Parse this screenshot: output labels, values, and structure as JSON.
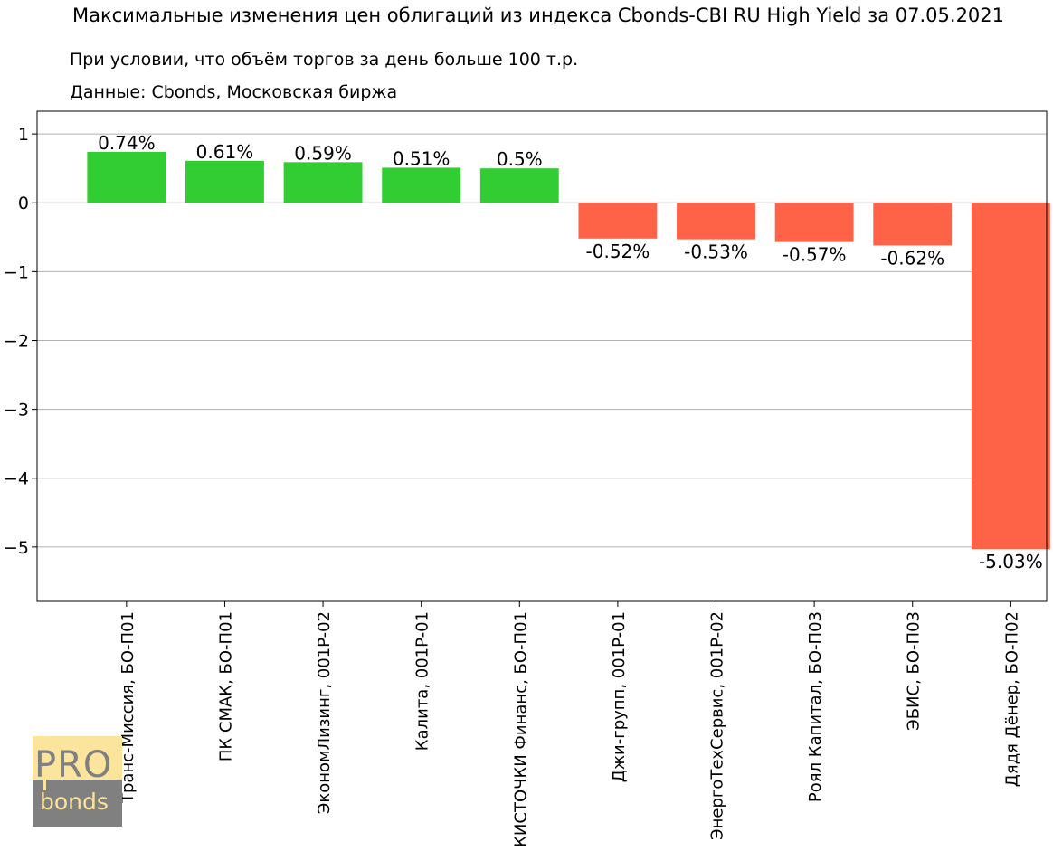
{
  "chart_data": {
    "type": "bar",
    "title": "Максимальные изменения цен облигаций из индекса Cbonds-CBI RU High Yield за 07.05.2021",
    "subtitle_lines": [
      "При условии, что объём торгов за день больше 100 т.р.",
      "Данные: Cbonds, Московская биржа"
    ],
    "categories": [
      "Транс-Миссия, БО-П01",
      "ПК СМАК, БО-П01",
      "ЭкономЛизинг, 001P-02",
      "Калита, 001P-01",
      "КИСТОЧКИ Финанс, БО-П01",
      "Джи-групп, 001P-01",
      "ЭнергоТехСервис, 001P-02",
      "Роял Капитал, БО-П03",
      "ЭБИС, БО-П03",
      "Дядя Дёнер, БО-П02"
    ],
    "values": [
      0.74,
      0.61,
      0.59,
      0.51,
      0.5,
      -0.52,
      -0.53,
      -0.57,
      -0.62,
      -5.03
    ],
    "data_labels": [
      "0.74%",
      "0.61%",
      "0.59%",
      "0.51%",
      "0.5%",
      "-0.52%",
      "-0.53%",
      "-0.57%",
      "-0.62%",
      "-5.03%"
    ],
    "yticks": [
      1,
      0,
      -1,
      -2,
      -3,
      -4,
      -5
    ],
    "ytick_labels": [
      "1",
      "0",
      "−1",
      "−2",
      "−3",
      "−4",
      "−5"
    ],
    "ylim": [
      -5.79,
      1.33
    ],
    "grid": "horizontal",
    "xlabel": "",
    "ylabel": "",
    "colors": {
      "positive": "#32cd32",
      "negative": "#ff6347",
      "grid": "#b0b0b0",
      "axis": "#000000"
    }
  },
  "logo": {
    "top_text": "PRO",
    "bottom_text": "bonds",
    "colors": {
      "top": "#fbe49b",
      "bottom": "#808080"
    }
  }
}
